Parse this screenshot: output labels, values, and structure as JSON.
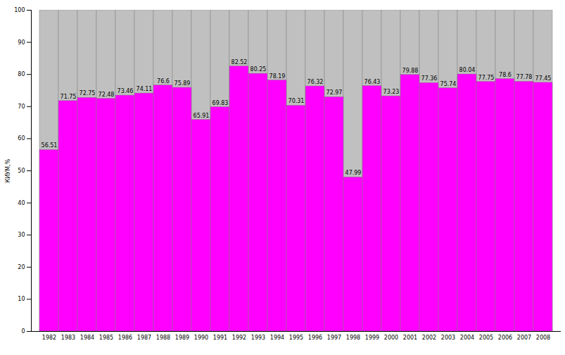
{
  "chart_data": {
    "type": "bar",
    "y_label": "КИУМ,%",
    "categories": [
      "1982",
      "1983",
      "1984",
      "1985",
      "1986",
      "1987",
      "1988",
      "1989",
      "1990",
      "1991",
      "1992",
      "1993",
      "1994",
      "1995",
      "1996",
      "1997",
      "1998",
      "1999",
      "2000",
      "2001",
      "2002",
      "2003",
      "2004",
      "2005",
      "2006",
      "2007",
      "2008"
    ],
    "values": [
      56.51,
      71.75,
      72.75,
      72.48,
      73.46,
      74.11,
      76.6,
      75.89,
      65.91,
      69.83,
      82.52,
      80.25,
      78.19,
      70.31,
      76.32,
      72.97,
      47.99,
      76.43,
      73.23,
      79.88,
      77.36,
      75.74,
      80.04,
      77.75,
      78.6,
      77.78,
      77.45
    ],
    "color": "#ff00ff",
    "ylim": [
      0,
      100
    ],
    "yticks": [
      0,
      10,
      20,
      30,
      40,
      50,
      60,
      70,
      80,
      90,
      100
    ],
    "data_labels": true,
    "grid": false
  }
}
